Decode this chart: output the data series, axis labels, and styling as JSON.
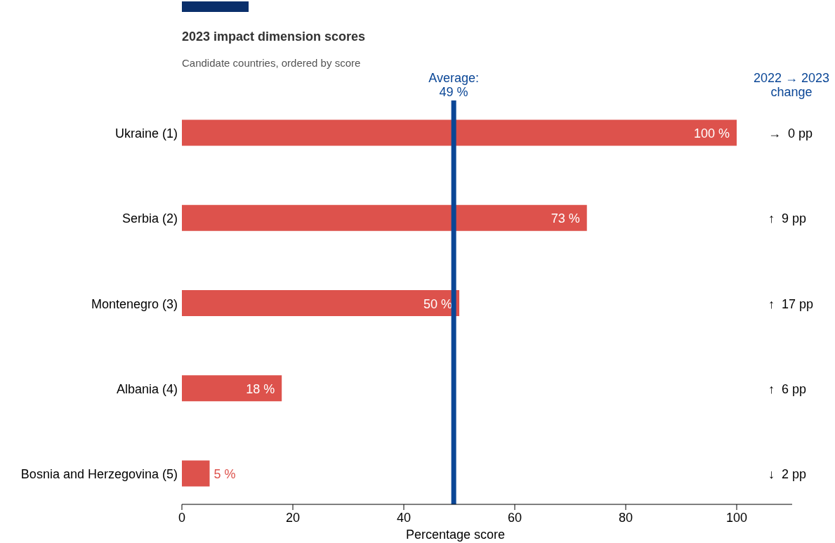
{
  "chart_data": {
    "type": "bar",
    "orientation": "horizontal",
    "title": "2023 impact dimension scores",
    "subtitle": "Candidate countries, ordered by score",
    "xlabel": "Percentage score",
    "categories": [
      "Ukraine (1)",
      "Serbia (2)",
      "Montenegro (3)",
      "Albania (4)",
      "Bosnia and Herzegovina (5)"
    ],
    "values": [
      100,
      73,
      50,
      18,
      5
    ],
    "color": "#dd524c",
    "value_labels": [
      "100 %",
      "73 %",
      "50 %",
      "18 %",
      "5 %"
    ],
    "xlim": [
      0,
      110
    ],
    "xticks": [
      0,
      20,
      40,
      60,
      80,
      100
    ],
    "grid": false,
    "ref_lines": [
      {
        "axis": "x",
        "value": 49,
        "label": "Average:\n49 %",
        "color": "#0a4696"
      }
    ],
    "annotations": [
      "2022 → 2023\nchange",
      "→  0 pp",
      "↑  9 pp",
      "↑  17 pp",
      "↑  6 pp",
      "↓  2 pp"
    ]
  }
}
